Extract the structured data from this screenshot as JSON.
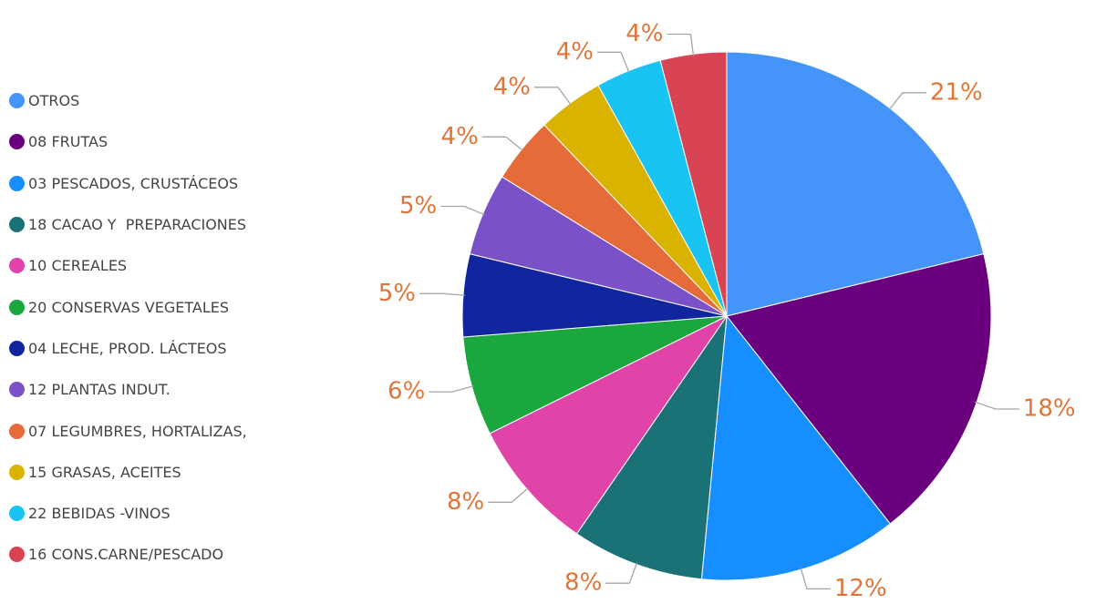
{
  "label_color": "#E07538",
  "leader_color": "#A6A6A6",
  "chart_data": {
    "type": "pie",
    "title": "",
    "legend_position": "left",
    "slices": [
      {
        "name": "OTROS",
        "value": 21,
        "label": "21%",
        "color": "#4494FA"
      },
      {
        "name": "08 FRUTAS",
        "value": 18,
        "label": "18%",
        "color": "#6A007D"
      },
      {
        "name": "03 PESCADOS, CRUSTÁCEOS",
        "value": 12,
        "label": "12%",
        "color": "#168EFF"
      },
      {
        "name": "18 CACAO Y  PREPARACIONES",
        "value": 8,
        "label": "8%",
        "color": "#1A7176"
      },
      {
        "name": "10 CEREALES",
        "value": 8,
        "label": "8%",
        "color": "#E044A8"
      },
      {
        "name": "20 CONSERVAS VEGETALES",
        "value": 6,
        "label": "6%",
        "color": "#1AA83E"
      },
      {
        "name": "04 LECHE, PROD. LÁCTEOS",
        "value": 5,
        "label": "5%",
        "color": "#10259E"
      },
      {
        "name": "12 PLANTAS INDUT.",
        "value": 5,
        "label": "5%",
        "color": "#7B51C7"
      },
      {
        "name": "07 LEGUMBRES, HORTALIZAS,",
        "value": 4,
        "label": "4%",
        "color": "#E56C38"
      },
      {
        "name": "15 GRASAS, ACEITES",
        "value": 4,
        "label": "4%",
        "color": "#D9B300"
      },
      {
        "name": "22 BEBIDAS -VINOS",
        "value": 4,
        "label": "4%",
        "color": "#19C3F2"
      },
      {
        "name": "16 CONS.CARNE/PESCADO",
        "value": 4,
        "label": "4%",
        "color": "#D84454"
      }
    ]
  }
}
